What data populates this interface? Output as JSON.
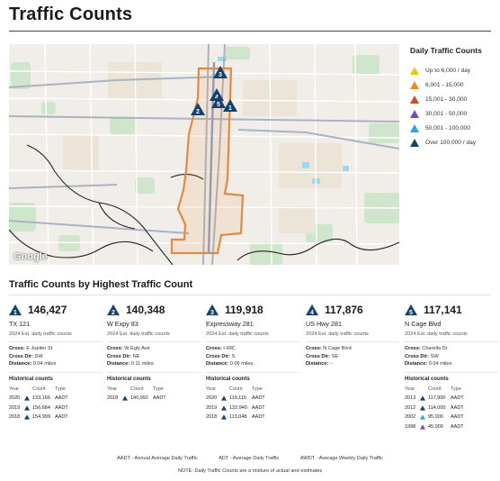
{
  "page": {
    "title": "Traffic Counts"
  },
  "map": {
    "attribution": "Google"
  },
  "legend": {
    "title": "Daily Traffic Counts",
    "items": [
      {
        "label": "Up to 6,000 / day",
        "color": "#f0c419"
      },
      {
        "label": "6,001 - 15,000",
        "color": "#ec8a2a"
      },
      {
        "label": "15,001 - 30,000",
        "color": "#c9502b"
      },
      {
        "label": "30,001 - 50,000",
        "color": "#7a47c9"
      },
      {
        "label": "50,001 - 100,000",
        "color": "#33a3df"
      },
      {
        "label": "Over 100,000 / day",
        "color": "#16416d"
      }
    ]
  },
  "map_markers": [
    "3",
    "4",
    "5",
    "2",
    "1"
  ],
  "section": {
    "title": "Traffic Counts by Highest Traffic Count"
  },
  "cards": [
    {
      "rank": "1",
      "count": "146,427",
      "road": "TX 121",
      "est": "2024 Est. daily traffic counts",
      "cross_label": "Cross:",
      "cross": "E Jupiter St",
      "dir_label": "Cross Dir:",
      "dir": "SW",
      "dist_label": "Distance:",
      "dist": "0.04 miles",
      "hist_title": "Historical counts",
      "hist_headers": [
        "Year",
        "Count",
        "Type"
      ],
      "history": [
        {
          "year": "2020",
          "count": "133,166",
          "type": "AADT",
          "color": "#16416d"
        },
        {
          "year": "2019",
          "count": "156,684",
          "type": "AADT",
          "color": "#16416d"
        },
        {
          "year": "2018",
          "count": "154,999",
          "type": "AADT",
          "color": "#16416d"
        }
      ]
    },
    {
      "rank": "2",
      "count": "140,348",
      "road": "W Expy 83",
      "est": "2024 Est. daily traffic counts",
      "cross_label": "Cross:",
      "cross": "W Egly Ave",
      "dir_label": "Cross Dir:",
      "dir": "NE",
      "dist_label": "Distance:",
      "dist": "0.11 miles",
      "hist_title": "Historical counts",
      "hist_headers": [
        "Year",
        "Count",
        "Type"
      ],
      "history": [
        {
          "year": "2018",
          "count": "140,992",
          "type": "AADT",
          "color": "#16416d"
        }
      ]
    },
    {
      "rank": "3",
      "count": "119,918",
      "road": "Expressway 281",
      "est": "2024 Est. daily traffic counts",
      "cross_label": "Cross:",
      "cross": "I-69C",
      "dir_label": "Cross Dir:",
      "dir": "S",
      "dist_label": "Distance:",
      "dist": "0.06 miles",
      "hist_title": "Historical counts",
      "hist_headers": [
        "Year",
        "Count",
        "Type"
      ],
      "history": [
        {
          "year": "2020",
          "count": "115,115",
          "type": "AADT",
          "color": "#16416d"
        },
        {
          "year": "2019",
          "count": "132,940",
          "type": "AADT",
          "color": "#16416d"
        },
        {
          "year": "2018",
          "count": "113,048",
          "type": "AADT",
          "color": "#16416d"
        }
      ]
    },
    {
      "rank": "4",
      "count": "117,876",
      "road": "US Hwy 281",
      "est": "2024 Est. daily traffic counts",
      "cross_label": "Cross:",
      "cross": "N Cage Blvd",
      "dir_label": "Cross Dir:",
      "dir": "SE",
      "dist_label": "Distance:",
      "dist": "–",
      "hist_title": "",
      "hist_headers": [],
      "history": []
    },
    {
      "rank": "5",
      "count": "117,141",
      "road": "N Cage Blvd",
      "est": "2024 Est. daily traffic counts",
      "cross_label": "Cross:",
      "cross": "Charella Dr",
      "dir_label": "Cross Dir:",
      "dir": "SW",
      "dist_label": "Distance:",
      "dist": "0.04 miles",
      "hist_title": "Historical counts",
      "hist_headers": [
        "Year",
        "Count",
        "Type"
      ],
      "history": [
        {
          "year": "2013",
          "count": "117,900",
          "type": "AADT",
          "color": "#16416d"
        },
        {
          "year": "2012",
          "count": "114,000",
          "type": "AADT",
          "color": "#16416d"
        },
        {
          "year": "2002",
          "count": "95,000",
          "type": "AADT",
          "color": "#33a3df"
        },
        {
          "year": "1998",
          "count": "45,000",
          "type": "AADT",
          "color": "#7a47c9"
        }
      ]
    }
  ],
  "footer": {
    "abbreviations": [
      "AADT - Annual Average Daily Traffic",
      "ADT - Average Daily Traffic",
      "AWDT - Average Weekly Daily Traffic"
    ],
    "note": "NOTE: Daily Traffic Counts are a mixture of actual and estimates"
  }
}
